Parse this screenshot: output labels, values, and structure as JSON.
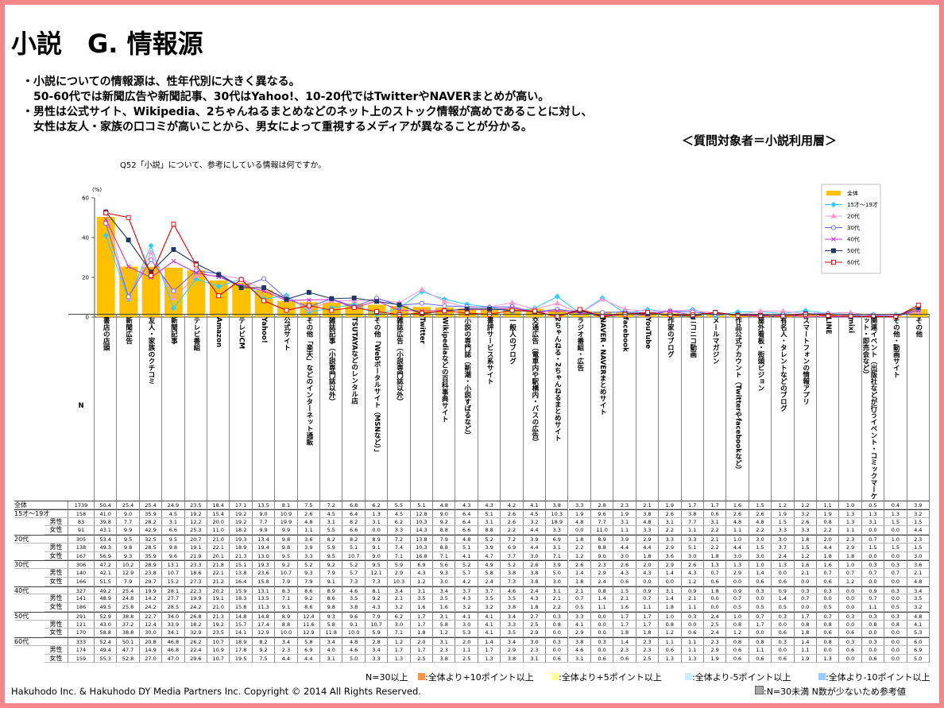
{
  "title": "小説　G. 情報源",
  "bullets": [
    "・小説についての情報源は、性年代別に大きく異なる。",
    "　50-60代では新聞広告や新聞記事、30代はYahoo!、10-20代ではTwitterやNAVERまとめが高い。",
    "・男性は公式サイト、Wikipedia、2ちゃんねるまとめなどのネット上のストック情報が高めであることに対し、",
    "　女性は友人・家族の口コミが高いことから、男女によって重視するメディアが異なることが分かる。"
  ],
  "target": "＜質問対象者＝小説利用層＞",
  "chart_data": {
    "type": "line",
    "title": "Q52「小説」について、参考にしている情報は何ですか。",
    "y_label": "(%)",
    "ylim": [
      0,
      60
    ],
    "yticks": [
      0,
      20,
      40,
      60
    ],
    "series": [
      {
        "name": "全体",
        "color": "#ffc000",
        "marker": "bar"
      },
      {
        "name": "15才～19才",
        "color": "#33ccff",
        "marker": "diamond"
      },
      {
        "name": "20代",
        "color": "#ff99cc",
        "marker": "triangle"
      },
      {
        "name": "30代",
        "color": "#6666ff",
        "marker": "circle"
      },
      {
        "name": "40代",
        "color": "#cc33cc",
        "marker": "x"
      },
      {
        "name": "50代",
        "color": "#1f3864",
        "marker": "square"
      },
      {
        "name": "60代",
        "color": "#e00000",
        "marker": "open-square"
      }
    ]
  },
  "table": {
    "n_header": "N",
    "columns": [
      "書店の店頭",
      "新聞広告",
      "友人・家族のクチコミ",
      "新聞記事",
      "テレビ番組",
      "Amazon",
      "テレビCM",
      "Yahoo!",
      "公式サイト",
      "その他「楽天」などのインターネット通販",
      "雑誌記事（小説専門誌以外）",
      "TSUTAYAなどのレンタル店",
      "その他「Webポータルサイト（MSNなど）」",
      "雑誌広告（小説専門誌以外）",
      "Twitter",
      "Wikipediaなどの百科事典サイト",
      "小説の専門誌（新潮・小説すばるなど）",
      "書評サービス系サイト",
      "一般人のブログ",
      "交通広告（電車内や駅構内・バスの広告）",
      "2ちゃんねる・2ちゃんねるまとめサイト",
      "ラジオ番組・広告",
      "NAVER・NAVERまとめサイト",
      "facebook",
      "YouTube",
      "作家のブログ",
      "ニコニコ動画",
      "メールマガジン",
      "作品公式アカウント（Twitterやfacebookなど）",
      "屋外看板・街頭ビジョン",
      "有名人・タレントなどのブログ",
      "スマートフォンの情報アプリ",
      "LINE",
      "mixi",
      "関連イベント（出版社などが行うイベント・コミックマーケット・即売会など）",
      "その他・動画サイト",
      "その他"
    ],
    "rows": [
      {
        "label": "全体",
        "values": [
          "1739",
          "50.4",
          "25.4",
          "25.4",
          "24.9",
          "23.5",
          "18.4",
          "17.1",
          "13.5",
          "8.1",
          "7.5",
          "7.2",
          "6.8",
          "6.2",
          "5.5",
          "5.1",
          "4.8",
          "4.3",
          "4.3",
          "4.2",
          "4.1",
          "3.8",
          "3.3",
          "2.8",
          "2.3",
          "2.1",
          "1.9",
          "1.7",
          "1.7",
          "1.6",
          "1.5",
          "1.2",
          "1.2",
          "1.1",
          "1.0",
          "0.5",
          "0.4",
          "3.9"
        ]
      },
      {
        "label": "15才～19才",
        "values": [
          "158",
          "41.0",
          "9.0",
          "35.9",
          "4.5",
          "19.2",
          "15.4",
          "19.2",
          "9.0",
          "10.9",
          "2.6",
          "4.5",
          "6.4",
          "1.3",
          "4.5",
          "12.8",
          "9.0",
          "6.4",
          "5.1",
          "2.6",
          "4.5",
          "10.3",
          "1.9",
          "9.6",
          "1.9",
          "3.8",
          "2.6",
          "3.8",
          "0.6",
          "2.6",
          "2.6",
          "1.9",
          "3.2",
          "1.9",
          "1.3",
          "1.3",
          "1.3",
          "3.2"
        ]
      },
      {
        "label": "男性",
        "values": [
          "83",
          "39.8",
          "7.7",
          "28.2",
          "3.1",
          "12.2",
          "20.0",
          "19.2",
          "7.7",
          "19.9",
          "4.8",
          "3.1",
          "8.2",
          "3.1",
          "6.2",
          "10.3",
          "9.2",
          "6.4",
          "3.1",
          "2.6",
          "3.2",
          "18.9",
          "4.8",
          "7.7",
          "3.1",
          "4.8",
          "3.1",
          "7.7",
          "3.1",
          "4.8",
          "4.8",
          "1.5",
          "2.6",
          "0.8",
          "1.3",
          "3.1",
          "1.5",
          "1.5"
        ]
      },
      {
        "label": "女性",
        "values": [
          "91",
          "43.1",
          "9.9",
          "42.9",
          "6.6",
          "25.3",
          "11.0",
          "18.2",
          "9.9",
          "9.9",
          "1.1",
          "5.5",
          "6.6",
          "0.0",
          "3.3",
          "14.3",
          "8.8",
          "6.6",
          "8.8",
          "2.2",
          "4.4",
          "3.3",
          "0.0",
          "11.0",
          "1.1",
          "3.3",
          "2.2",
          "1.1",
          "2.2",
          "1.1",
          "2.2",
          "3.3",
          "3.3",
          "2.2",
          "1.1",
          "0.0",
          "0.0",
          "4.4"
        ]
      },
      {
        "label": "20代",
        "values": [
          "305",
          "53.4",
          "9.5",
          "32.5",
          "9.5",
          "20.7",
          "21.0",
          "19.3",
          "13.4",
          "9.8",
          "3.6",
          "8.2",
          "8.2",
          "8.9",
          "7.2",
          "13.8",
          "7.9",
          "4.8",
          "5.2",
          "7.2",
          "3.9",
          "6.9",
          "1.8",
          "8.9",
          "3.9",
          "2.9",
          "3.3",
          "3.3",
          "2.1",
          "1.0",
          "3.0",
          "3.0",
          "1.8",
          "2.0",
          "2.3",
          "0.7",
          "1.0",
          "2.3"
        ]
      },
      {
        "label": "男性",
        "values": [
          "138",
          "49.3",
          "9.8",
          "28.5",
          "9.8",
          "19.1",
          "22.1",
          "18.9",
          "19.4",
          "9.8",
          "3.9",
          "5.9",
          "5.1",
          "9.1",
          "7.4",
          "10.3",
          "8.8",
          "5.1",
          "3.9",
          "6.9",
          "4.4",
          "3.1",
          "2.2",
          "8.8",
          "4.4",
          "4.4",
          "2.9",
          "5.1",
          "2.2",
          "4.4",
          "1.5",
          "3.7",
          "1.5",
          "4.4",
          "2.9",
          "1.5",
          "1.5",
          "1.5"
        ]
      },
      {
        "label": "女性",
        "values": [
          "167",
          "56.9",
          "9.3",
          "35.9",
          "9.6",
          "21.9",
          "20.1",
          "21.3",
          "13.0",
          "9.5",
          "3.3",
          "9.5",
          "10.7",
          "9.0",
          "7.1",
          "16.8",
          "7.1",
          "4.1",
          "4.7",
          "7.7",
          "3.0",
          "7.1",
          "1.2",
          "9.0",
          "3.0",
          "1.8",
          "3.6",
          "3.0",
          "1.8",
          "3.0",
          "3.0",
          "2.4",
          "1.2",
          "1.8",
          "1.8",
          "0.0",
          "0.0",
          "3.0"
        ]
      },
      {
        "label": "30代",
        "values": [
          "306",
          "47.2",
          "10.2",
          "28.9",
          "13.1",
          "23.3",
          "21.8",
          "15.1",
          "19.3",
          "9.2",
          "5.2",
          "9.2",
          "5.2",
          "9.5",
          "5.9",
          "6.9",
          "5.6",
          "5.2",
          "4.9",
          "5.2",
          "2.6",
          "3.9",
          "2.6",
          "2.3",
          "2.6",
          "2.0",
          "2.9",
          "2.6",
          "1.3",
          "1.3",
          "1.0",
          "1.3",
          "1.6",
          "1.6",
          "1.0",
          "0.3",
          "0.3",
          "3.6"
        ]
      },
      {
        "label": "男性",
        "values": [
          "140",
          "42.1",
          "12.9",
          "23.8",
          "10.7",
          "18.6",
          "22.1",
          "13.8",
          "23.6",
          "10.7",
          "9.3",
          "7.9",
          "5.7",
          "12.1",
          "2.9",
          "4.3",
          "9.3",
          "5.7",
          "5.8",
          "3.8",
          "3.8",
          "5.0",
          "1.4",
          "2.9",
          "4.3",
          "4.3",
          "1.4",
          "4.3",
          "0.7",
          "2.9",
          "1.4",
          "0.0",
          "2.1",
          "0.7",
          "0.7",
          "0.7",
          "0.7",
          "2.1"
        ]
      },
      {
        "label": "女性",
        "values": [
          "166",
          "51.5",
          "7.9",
          "29.7",
          "15.2",
          "27.3",
          "21.2",
          "16.4",
          "15.8",
          "7.9",
          "7.9",
          "9.1",
          "7.3",
          "7.3",
          "10.3",
          "1.2",
          "3.0",
          "4.2",
          "2.4",
          "7.3",
          "3.8",
          "3.0",
          "1.8",
          "2.4",
          "0.6",
          "0.0",
          "0.0",
          "1.2",
          "0.6",
          "0.0",
          "0.6",
          "0.6",
          "0.0",
          "0.6",
          "1.2",
          "0.0",
          "0.0",
          "4.8"
        ]
      },
      {
        "label": "40代",
        "values": [
          "327",
          "49.2",
          "25.4",
          "19.9",
          "28.1",
          "22.3",
          "20.2",
          "15.9",
          "13.1",
          "8.3",
          "8.6",
          "8.9",
          "4.6",
          "8.1",
          "3.4",
          "3.1",
          "3.4",
          "3.7",
          "3.7",
          "4.6",
          "2.4",
          "3.1",
          "2.1",
          "0.8",
          "1.5",
          "0.9",
          "3.1",
          "0.9",
          "1.8",
          "0.9",
          "0.3",
          "0.9",
          "0.3",
          "0.3",
          "0.0",
          "0.9",
          "0.3",
          "3.4"
        ]
      },
      {
        "label": "男性",
        "values": [
          "141",
          "48.9",
          "24.8",
          "14.2",
          "27.7",
          "19.9",
          "19.1",
          "18.3",
          "13.5",
          "7.1",
          "9.2",
          "8.6",
          "3.5",
          "9.2",
          "2.1",
          "3.5",
          "3.5",
          "4.3",
          "3.5",
          "3.5",
          "4.3",
          "2.1",
          "0.7",
          "1.4",
          "2.1",
          "0.7",
          "1.4",
          "2.1",
          "0.0",
          "0.7",
          "0.0",
          "1.4",
          "0.7",
          "0.0",
          "0.0",
          "0.7",
          "0.0",
          "3.5"
        ]
      },
      {
        "label": "女性",
        "values": [
          "186",
          "49.5",
          "25.8",
          "24.2",
          "28.5",
          "24.2",
          "21.0",
          "15.8",
          "11.3",
          "9.1",
          "8.6",
          "9.8",
          "3.8",
          "4.3",
          "3.2",
          "1.6",
          "1.6",
          "3.2",
          "3.2",
          "3.8",
          "1.8",
          "2.2",
          "0.5",
          "1.1",
          "1.6",
          "1.1",
          "1.8",
          "1.1",
          "0.0",
          "0.5",
          "0.5",
          "0.5",
          "0.0",
          "0.5",
          "0.0",
          "1.1",
          "0.5",
          "3.2"
        ]
      },
      {
        "label": "50代",
        "values": [
          "291",
          "52.9",
          "38.8",
          "22.7",
          "34.0",
          "26.8",
          "21.3",
          "14.8",
          "14.8",
          "8.9",
          "12.4",
          "9.3",
          "9.6",
          "7.9",
          "6.2",
          "1.7",
          "3.1",
          "4.1",
          "4.1",
          "3.4",
          "2.7",
          "0.3",
          "3.3",
          "0.0",
          "1.7",
          "1.7",
          "1.0",
          "0.3",
          "2.4",
          "1.0",
          "0.7",
          "0.3",
          "1.7",
          "0.7",
          "0.3",
          "0.3",
          "0.3",
          "4.8"
        ]
      },
      {
        "label": "男性",
        "values": [
          "121",
          "43.0",
          "37.2",
          "12.4",
          "33.9",
          "18.2",
          "19.2",
          "15.7",
          "17.4",
          "8.8",
          "11.6",
          "5.8",
          "9.1",
          "10.7",
          "3.0",
          "1.7",
          "5.8",
          "3.0",
          "4.1",
          "3.3",
          "2.5",
          "0.8",
          "4.1",
          "0.0",
          "1.7",
          "1.7",
          "0.8",
          "0.0",
          "2.5",
          "0.8",
          "1.7",
          "0.0",
          "0.8",
          "0.8",
          "0.0",
          "0.8",
          "0.8",
          "4.1"
        ]
      },
      {
        "label": "女性",
        "values": [
          "170",
          "58.8",
          "38.8",
          "30.0",
          "34.1",
          "32.9",
          "23.5",
          "14.1",
          "12.9",
          "10.0",
          "12.9",
          "11.8",
          "10.0",
          "5.9",
          "7.1",
          "1.8",
          "1.2",
          "5.3",
          "4.1",
          "3.5",
          "2.9",
          "0.0",
          "2.9",
          "0.0",
          "1.8",
          "1.8",
          "1.2",
          "0.6",
          "2.4",
          "1.2",
          "0.0",
          "0.6",
          "1.8",
          "0.6",
          "0.6",
          "0.0",
          "0.0",
          "5.3"
        ]
      },
      {
        "label": "60代",
        "values": [
          "333",
          "52.4",
          "50.1",
          "20.8",
          "46.8",
          "26.2",
          "10.7",
          "18.9",
          "8.2",
          "3.4",
          "5.8",
          "3.4",
          "4.8",
          "2.8",
          "1.2",
          "2.0",
          "3.1",
          "2.0",
          "1.4",
          "3.4",
          "3.0",
          "0.3",
          "3.8",
          "0.3",
          "1.4",
          "2.3",
          "1.1",
          "1.1",
          "2.3",
          "0.8",
          "0.8",
          "0.3",
          "1.4",
          "0.8",
          "0.3",
          "0.3",
          "0.0",
          "6.0"
        ]
      },
      {
        "label": "男性",
        "values": [
          "174",
          "49.4",
          "47.7",
          "14.9",
          "46.8",
          "22.4",
          "10.9",
          "17.8",
          "9.2",
          "2.3",
          "6.9",
          "4.0",
          "4.6",
          "3.4",
          "1.7",
          "1.7",
          "2.3",
          "1.1",
          "1.7",
          "2.9",
          "2.3",
          "0.0",
          "4.6",
          "0.0",
          "2.3",
          "2.3",
          "0.6",
          "1.1",
          "2.9",
          "0.6",
          "1.1",
          "0.0",
          "1.1",
          "0.0",
          "0.6",
          "0.0",
          "0.0",
          "6.9"
        ]
      },
      {
        "label": "女性",
        "values": [
          "159",
          "55.3",
          "52.8",
          "27.0",
          "47.0",
          "29.6",
          "10.7",
          "19.5",
          "7.5",
          "4.4",
          "4.4",
          "3.1",
          "5.0",
          "3.3",
          "1.3",
          "2.5",
          "3.8",
          "2.5",
          "1.3",
          "3.8",
          "3.1",
          "0.6",
          "3.1",
          "0.6",
          "0.6",
          "2.5",
          "1.3",
          "1.3",
          "1.9",
          "0.6",
          "0.6",
          "0.6",
          "1.9",
          "1.3",
          "0.0",
          "0.6",
          "0.0",
          "5.0"
        ]
      }
    ]
  },
  "footer": {
    "n_note": "N=30以上",
    "legend": [
      {
        "color": "#f79646",
        "text": ":全体より+10ポイント以上"
      },
      {
        "color": "#ffff99",
        "text": ":全体より+5ポイント以上"
      },
      {
        "color": "#ccecff",
        "text": ":全体より-5ポイント以上"
      },
      {
        "color": "#99ccff",
        "text": ":全体より-10ポイント以上"
      }
    ],
    "copyright": "Hakuhodo Inc. & Hakuhodo DY Media Partners Inc. Copyright © 2014 All Rights Reserved.",
    "small_n": {
      "color": "#a6a6a6",
      "text": ":N=30未満 N数が少ないため参考値"
    }
  }
}
